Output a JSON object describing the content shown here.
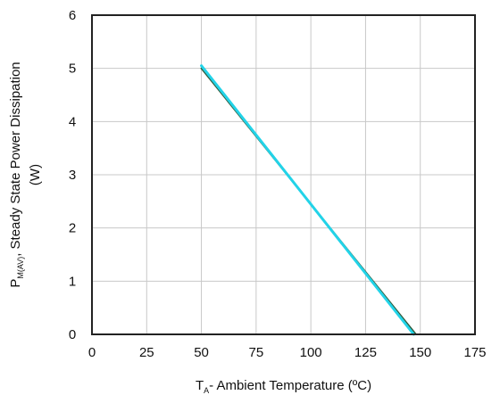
{
  "chart_data": {
    "type": "line",
    "xlabel": {
      "main": "T",
      "sub": "A",
      "rest": "- Ambient Temperature (ºC)"
    },
    "ylabel": {
      "main": "P",
      "sub": "M(AV)",
      "rest": ", Steady State Power Dissipation",
      "line2": "(W)"
    },
    "xlim": [
      0,
      175
    ],
    "ylim": [
      0,
      6
    ],
    "xticks": [
      0,
      25,
      50,
      75,
      100,
      125,
      150,
      175
    ],
    "yticks": [
      0,
      1,
      2,
      3,
      4,
      5,
      6
    ],
    "grid": true,
    "series": [
      {
        "color": "#2f5a3a",
        "x": [
          50,
          148
        ],
        "y": [
          5.0,
          0.0
        ]
      },
      {
        "color": "#22d3e8",
        "x": [
          50,
          147
        ],
        "y": [
          5.05,
          0.0
        ]
      }
    ]
  }
}
